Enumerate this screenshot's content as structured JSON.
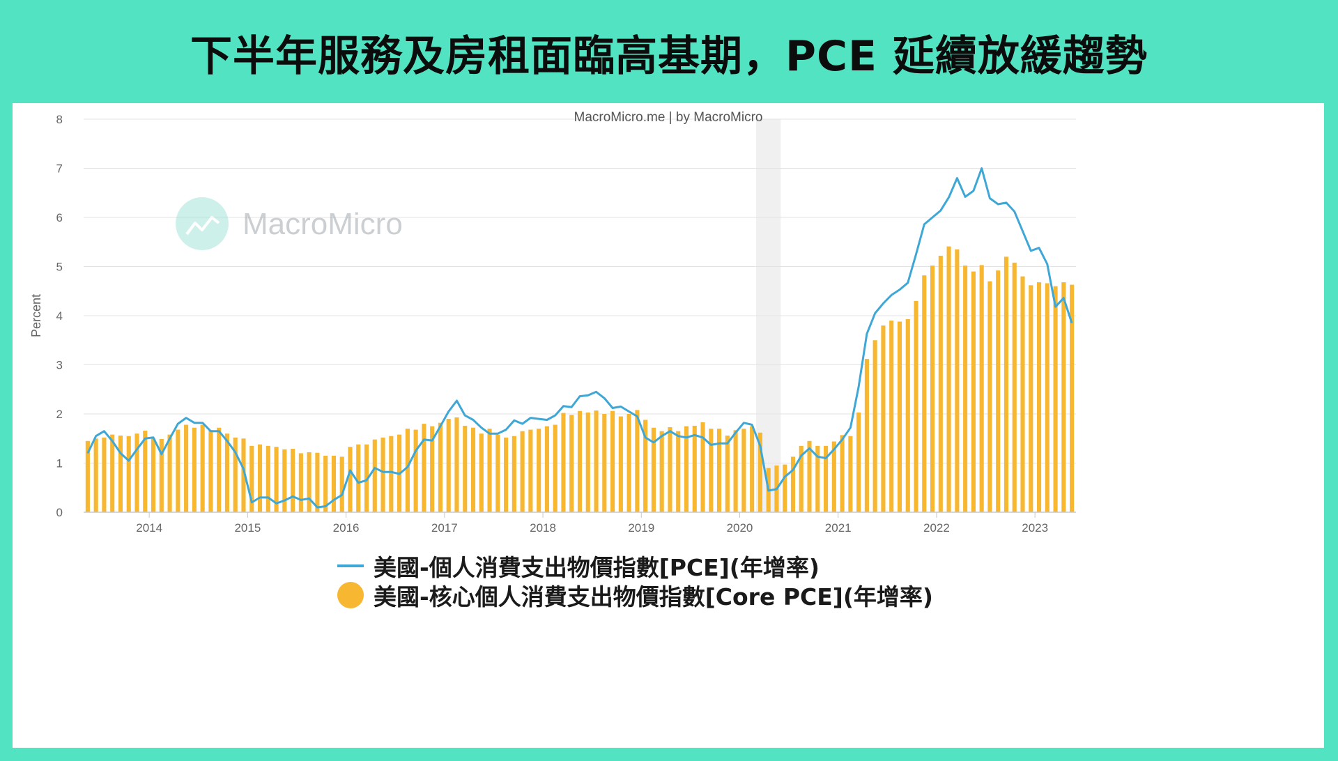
{
  "headline": "下半年服務及房租面臨高基期，PCE 延續放緩趨勢",
  "colors": {
    "background": "#52e4c2",
    "pce_line": "#3fa7d6",
    "core_bar": "#f7b731",
    "recession_shade": "#f0f0f0"
  },
  "chart_data": {
    "type": "bar",
    "title": "MacroMicro.me | by MacroMicro",
    "watermark": "MacroMicro",
    "ylabel": "Percent",
    "xlabel": "",
    "ylim": [
      0,
      8
    ],
    "yticks": [
      0,
      1,
      2,
      3,
      4,
      5,
      6,
      7,
      8
    ],
    "xticks": [
      "2014",
      "2015",
      "2016",
      "2017",
      "2018",
      "2019",
      "2020",
      "2021",
      "2022",
      "2023"
    ],
    "x_start": "2013-05",
    "x_end": "2023-05",
    "recession": [
      "2020-03",
      "2020-05"
    ],
    "grid": true,
    "legend_position": "bottom",
    "series": [
      {
        "name": "美國-個人消費支出物價指數[PCE](年增率)",
        "type": "line",
        "values": [
          1.2,
          1.55,
          1.65,
          1.45,
          1.2,
          1.05,
          1.28,
          1.5,
          1.52,
          1.18,
          1.5,
          1.8,
          1.92,
          1.82,
          1.82,
          1.65,
          1.65,
          1.45,
          1.22,
          0.88,
          0.2,
          0.3,
          0.3,
          0.18,
          0.24,
          0.32,
          0.25,
          0.28,
          0.1,
          0.12,
          0.25,
          0.35,
          0.85,
          0.6,
          0.65,
          0.9,
          0.82,
          0.82,
          0.78,
          0.92,
          1.25,
          1.48,
          1.46,
          1.75,
          2.05,
          2.27,
          1.97,
          1.88,
          1.72,
          1.6,
          1.6,
          1.68,
          1.87,
          1.8,
          1.92,
          1.9,
          1.88,
          1.97,
          2.16,
          2.14,
          2.36,
          2.38,
          2.45,
          2.32,
          2.12,
          2.15,
          2.05,
          1.95,
          1.52,
          1.42,
          1.55,
          1.65,
          1.55,
          1.52,
          1.57,
          1.52,
          1.37,
          1.4,
          1.4,
          1.62,
          1.82,
          1.78,
          1.35,
          0.44,
          0.47,
          0.72,
          0.86,
          1.15,
          1.3,
          1.13,
          1.1,
          1.28,
          1.48,
          1.72,
          2.55,
          3.63,
          4.05,
          4.25,
          4.42,
          4.53,
          4.67,
          5.25,
          5.86,
          6.0,
          6.14,
          6.41,
          6.8,
          6.42,
          6.54,
          7.0,
          6.39,
          6.27,
          6.3,
          6.12,
          5.72,
          5.32,
          5.38,
          5.05,
          4.18,
          4.36,
          3.85
        ]
      },
      {
        "name": "美國-核心個人消費支出物價指數[Core PCE](年增率)",
        "type": "bar",
        "values": [
          1.45,
          1.5,
          1.52,
          1.58,
          1.56,
          1.55,
          1.6,
          1.66,
          1.5,
          1.49,
          1.58,
          1.68,
          1.78,
          1.72,
          1.78,
          1.67,
          1.72,
          1.6,
          1.52,
          1.5,
          1.35,
          1.38,
          1.35,
          1.33,
          1.28,
          1.29,
          1.2,
          1.22,
          1.21,
          1.15,
          1.15,
          1.13,
          1.33,
          1.38,
          1.38,
          1.48,
          1.52,
          1.55,
          1.58,
          1.7,
          1.68,
          1.8,
          1.75,
          1.82,
          1.9,
          1.93,
          1.76,
          1.72,
          1.6,
          1.7,
          1.58,
          1.52,
          1.55,
          1.65,
          1.68,
          1.7,
          1.75,
          1.78,
          2.02,
          1.98,
          2.06,
          2.03,
          2.07,
          2.0,
          2.06,
          1.95,
          2.0,
          2.08,
          1.88,
          1.72,
          1.65,
          1.73,
          1.65,
          1.75,
          1.76,
          1.83,
          1.7,
          1.7,
          1.56,
          1.67,
          1.7,
          1.75,
          1.62,
          0.9,
          0.95,
          0.97,
          1.13,
          1.35,
          1.45,
          1.35,
          1.35,
          1.44,
          1.57,
          1.55,
          2.03,
          3.12,
          3.5,
          3.8,
          3.9,
          3.88,
          3.93,
          4.3,
          4.82,
          5.02,
          5.22,
          5.41,
          5.35,
          5.02,
          4.9,
          5.03,
          4.7,
          4.92,
          5.2,
          5.08,
          4.8,
          4.62,
          4.68,
          4.66,
          4.6,
          4.68,
          4.63
        ]
      }
    ]
  }
}
